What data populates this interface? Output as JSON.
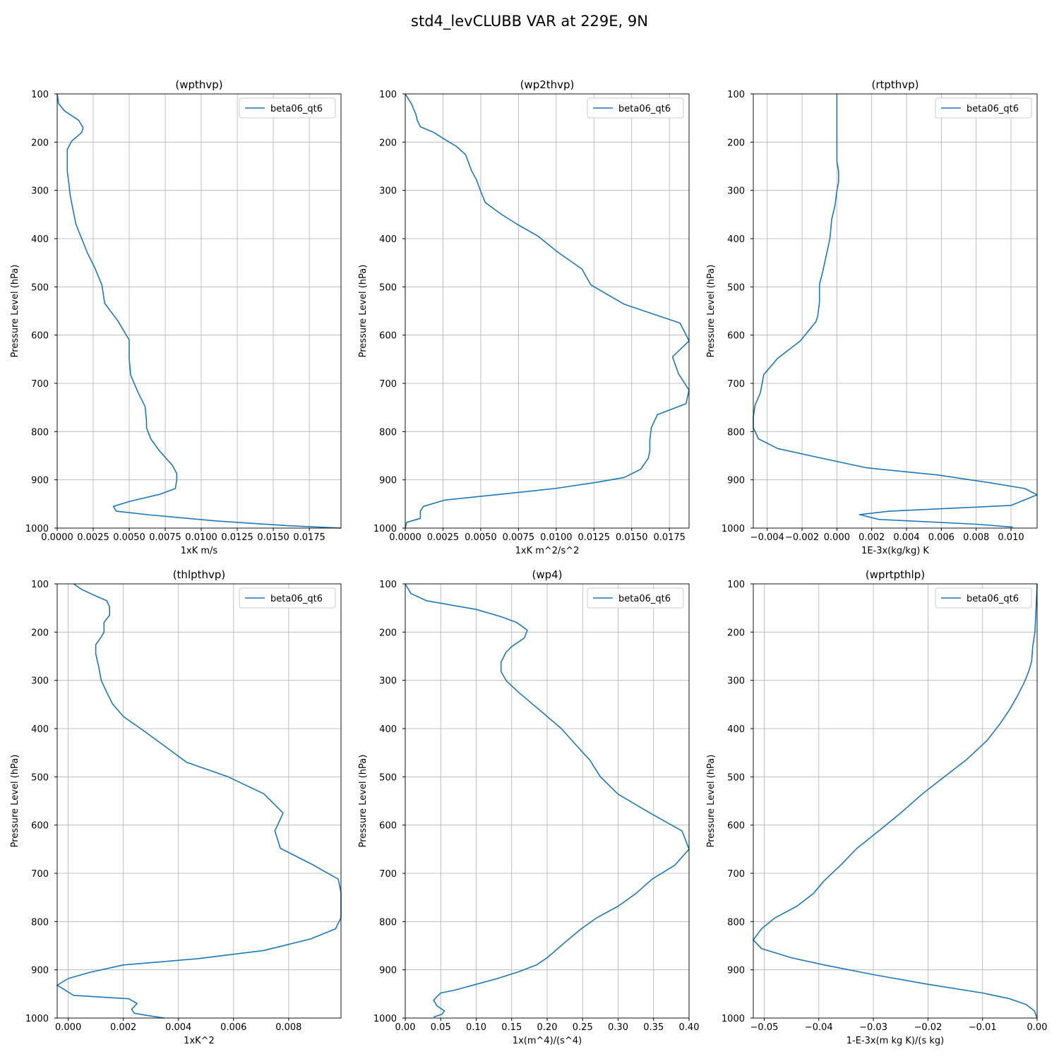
{
  "figure": {
    "title": "std4_levCLUBB VAR at 229E, 9N"
  },
  "colors": {
    "series": "#1f77b4",
    "grid": "#b0b0b0",
    "axes": "#000000"
  },
  "chart_data": [
    {
      "type": "line",
      "title": "(wpthvp)",
      "xlabel": "1xK m/s",
      "ylabel": "Pressure Level (hPa)",
      "xlim": [
        0,
        0.0197
      ],
      "ylim": [
        1000,
        100
      ],
      "grid": true,
      "legend": "top-right",
      "xticks": [
        0,
        0.0025,
        0.005,
        0.0075,
        0.01,
        0.0125,
        0.015,
        0.0175
      ],
      "xticklabels": [
        "0.0000",
        "0.0025",
        "0.0050",
        "0.0075",
        "0.0100",
        "0.0125",
        "0.0150",
        "0.0175"
      ],
      "yticks": [
        100,
        200,
        300,
        400,
        500,
        600,
        700,
        800,
        900,
        1000
      ],
      "yticklabels": [
        "100",
        "200",
        "300",
        "400",
        "500",
        "600",
        "700",
        "800",
        "900",
        "1000"
      ],
      "series": [
        {
          "name": "beta06_qt6",
          "x": [
            0.0,
            0.0001,
            0.0005,
            0.0015,
            0.0018,
            0.0017,
            0.001,
            0.0007,
            0.0007,
            0.0007,
            0.0008,
            0.0009,
            0.0011,
            0.0013,
            0.0017,
            0.0021,
            0.0026,
            0.0031,
            0.0033,
            0.0042,
            0.005,
            0.005,
            0.0051,
            0.0056,
            0.0061,
            0.0062,
            0.0062,
            0.0065,
            0.0071,
            0.008,
            0.0083,
            0.0083,
            0.0082,
            0.0071,
            0.005,
            0.0039,
            0.0041,
            0.0065,
            0.011,
            0.016,
            0.0197
          ],
          "y": [
            100,
            120,
            135,
            155,
            170,
            180,
            198,
            215,
            233,
            260,
            283,
            310,
            340,
            370,
            400,
            430,
            460,
            496,
            534,
            570,
            610,
            649,
            683,
            718,
            748,
            778,
            792,
            815,
            840,
            870,
            887,
            900,
            918,
            930,
            945,
            955,
            965,
            973,
            985,
            995,
            1000
          ]
        }
      ]
    },
    {
      "type": "line",
      "title": "(wp2thvp)",
      "xlabel": "1xK m^2/s^2",
      "ylabel": "Pressure Level (hPa)",
      "xlim": [
        0,
        0.0188
      ],
      "ylim": [
        1000,
        100
      ],
      "grid": true,
      "legend": "top-right",
      "xticks": [
        0,
        0.0025,
        0.005,
        0.0075,
        0.01,
        0.0125,
        0.015,
        0.0175
      ],
      "xticklabels": [
        "0.0000",
        "0.0025",
        "0.0050",
        "0.0075",
        "0.0100",
        "0.0125",
        "0.0150",
        "0.0175"
      ],
      "yticks": [
        100,
        200,
        300,
        400,
        500,
        600,
        700,
        800,
        900,
        1000
      ],
      "yticklabels": [
        "100",
        "200",
        "300",
        "400",
        "500",
        "600",
        "700",
        "800",
        "900",
        "1000"
      ],
      "series": [
        {
          "name": "beta06_qt6",
          "x": [
            0.0,
            0.0004,
            0.0007,
            0.0008,
            0.001,
            0.0019,
            0.0025,
            0.0034,
            0.004,
            0.0042,
            0.0044,
            0.0047,
            0.005,
            0.0053,
            0.0063,
            0.0074,
            0.0088,
            0.0101,
            0.0117,
            0.0123,
            0.0145,
            0.0182,
            0.0188,
            0.0177,
            0.0181,
            0.0188,
            0.0186,
            0.0167,
            0.0163,
            0.0162,
            0.0162,
            0.0161,
            0.0156,
            0.0145,
            0.0127,
            0.0099,
            0.0026,
            0.0012,
            0.001,
            0.001,
            0.0001,
            0.0
          ],
          "y": [
            100,
            120,
            142,
            155,
            168,
            180,
            192,
            209,
            226,
            243,
            260,
            277,
            302,
            325,
            348,
            370,
            395,
            428,
            463,
            496,
            536,
            575,
            612,
            645,
            680,
            714,
            742,
            765,
            792,
            818,
            840,
            855,
            878,
            895,
            905,
            918,
            942,
            955,
            965,
            980,
            988,
            1000
          ]
        }
      ]
    },
    {
      "type": "line",
      "title": "(rtpthvp)",
      "xlabel": "1E-3x(kg/kg) K",
      "ylabel": "Pressure Level (hPa)",
      "xlim": [
        -0.0048,
        0.0115
      ],
      "ylim": [
        1000,
        100
      ],
      "grid": true,
      "legend": "top-right",
      "xticks": [
        -0.004,
        -0.002,
        0.0,
        0.002,
        0.004,
        0.006,
        0.008,
        0.01
      ],
      "xticklabels": [
        "−0.004",
        "−0.002",
        "0.000",
        "0.002",
        "0.004",
        "0.006",
        "0.008",
        "0.010"
      ],
      "yticks": [
        100,
        200,
        300,
        400,
        500,
        600,
        700,
        800,
        900,
        1000
      ],
      "yticklabels": [
        "100",
        "200",
        "300",
        "400",
        "500",
        "600",
        "700",
        "800",
        "900",
        "1000"
      ],
      "series": [
        {
          "name": "beta06_qt6",
          "x": [
            0.0,
            0.0,
            0.0,
            0.0,
            0.0001,
            0.0001,
            0.0,
            -0.0001,
            -0.0003,
            -0.0004,
            -0.0008,
            -0.001,
            -0.001,
            -0.0011,
            -0.0012,
            -0.0021,
            -0.0034,
            -0.0042,
            -0.0044,
            -0.0047,
            -0.0048,
            -0.0048,
            -0.0045,
            -0.0034,
            -0.0009,
            0.0017,
            0.0058,
            0.0088,
            0.0108,
            0.0115,
            0.01,
            0.003,
            0.0013,
            0.0024,
            0.008,
            0.0101
          ],
          "y": [
            100,
            150,
            200,
            240,
            260,
            283,
            300,
            330,
            360,
            400,
            466,
            495,
            532,
            560,
            572,
            612,
            648,
            682,
            720,
            745,
            770,
            792,
            815,
            835,
            855,
            875,
            890,
            906,
            918,
            931,
            953,
            965,
            972,
            982,
            992,
            998
          ]
        }
      ]
    },
    {
      "type": "line",
      "title": "(thlpthvp)",
      "xlabel": "1xK^2",
      "ylabel": "Pressure Level (hPa)",
      "xlim": [
        -0.0004,
        0.0099
      ],
      "ylim": [
        1000,
        100
      ],
      "grid": true,
      "legend": "top-right",
      "xticks": [
        0.0,
        0.002,
        0.004,
        0.006,
        0.008
      ],
      "xticklabels": [
        "0.000",
        "0.002",
        "0.004",
        "0.006",
        "0.008"
      ],
      "yticks": [
        100,
        200,
        300,
        400,
        500,
        600,
        700,
        800,
        900,
        1000
      ],
      "yticklabels": [
        "100",
        "200",
        "300",
        "400",
        "500",
        "600",
        "700",
        "800",
        "900",
        "1000"
      ],
      "series": [
        {
          "name": "beta06_qt6",
          "x": [
            0.0002,
            0.0005,
            0.001,
            0.0014,
            0.0015,
            0.0015,
            0.0013,
            0.0013,
            0.0012,
            0.001,
            0.001,
            0.0011,
            0.0012,
            0.0014,
            0.0016,
            0.002,
            0.0027,
            0.0034,
            0.0043,
            0.0058,
            0.0071,
            0.0078,
            0.0075,
            0.0077,
            0.0089,
            0.0098,
            0.0099,
            0.0099,
            0.0099,
            0.0097,
            0.0088,
            0.0071,
            0.0047,
            0.002,
            0.0008,
            0.0,
            -0.0004,
            0.0002,
            0.0022,
            0.0025,
            0.0023,
            0.0024,
            0.0029,
            0.0035
          ],
          "y": [
            100,
            112,
            125,
            135,
            148,
            165,
            180,
            200,
            210,
            226,
            245,
            270,
            300,
            325,
            348,
            375,
            403,
            432,
            470,
            500,
            535,
            575,
            612,
            648,
            683,
            712,
            740,
            768,
            792,
            815,
            836,
            860,
            877,
            890,
            905,
            918,
            932,
            953,
            960,
            970,
            982,
            990,
            995,
            1000
          ]
        }
      ]
    },
    {
      "type": "line",
      "title": "(wp4)",
      "xlabel": "1x(m^4)/(s^4)",
      "ylabel": "Pressure Level (hPa)",
      "xlim": [
        0,
        0.4
      ],
      "ylim": [
        1000,
        100
      ],
      "grid": true,
      "legend": "top-right",
      "xticks": [
        0,
        0.05,
        0.1,
        0.15,
        0.2,
        0.25,
        0.3,
        0.35,
        0.4
      ],
      "xticklabels": [
        "0.00",
        "0.05",
        "0.10",
        "0.15",
        "0.20",
        "0.25",
        "0.30",
        "0.35",
        "0.40"
      ],
      "yticks": [
        100,
        200,
        300,
        400,
        500,
        600,
        700,
        800,
        900,
        1000
      ],
      "yticklabels": [
        "100",
        "200",
        "300",
        "400",
        "500",
        "600",
        "700",
        "800",
        "900",
        "1000"
      ],
      "series": [
        {
          "name": "beta06_qt6",
          "x": [
            0.0,
            0.008,
            0.03,
            0.1,
            0.135,
            0.157,
            0.172,
            0.168,
            0.15,
            0.142,
            0.135,
            0.135,
            0.143,
            0.16,
            0.18,
            0.2,
            0.22,
            0.24,
            0.26,
            0.275,
            0.3,
            0.345,
            0.39,
            0.4,
            0.38,
            0.348,
            0.325,
            0.3,
            0.27,
            0.248,
            0.226,
            0.2,
            0.185,
            0.16,
            0.13,
            0.1,
            0.07,
            0.05,
            0.045,
            0.04,
            0.045,
            0.055,
            0.052,
            0.04
          ],
          "y": [
            100,
            120,
            135,
            153,
            168,
            180,
            196,
            212,
            230,
            242,
            262,
            282,
            302,
            325,
            350,
            375,
            400,
            433,
            465,
            500,
            536,
            575,
            612,
            650,
            683,
            712,
            742,
            768,
            792,
            815,
            842,
            875,
            890,
            904,
            918,
            930,
            942,
            948,
            955,
            963,
            975,
            985,
            992,
            998
          ]
        }
      ]
    },
    {
      "type": "line",
      "title": "(wprtpthlp)",
      "xlabel": "1-E-3x(m kg K)/(s kg)",
      "ylabel": "Pressure Level (hPa)",
      "xlim": [
        -0.052,
        0.0
      ],
      "ylim": [
        1000,
        100
      ],
      "grid": true,
      "legend": "top-right",
      "xticks": [
        -0.05,
        -0.04,
        -0.03,
        -0.02,
        -0.01,
        0.0
      ],
      "xticklabels": [
        "−0.05",
        "−0.04",
        "−0.03",
        "−0.02",
        "−0.01",
        "0.00"
      ],
      "yticks": [
        100,
        200,
        300,
        400,
        500,
        600,
        700,
        800,
        900,
        1000
      ],
      "yticklabels": [
        "100",
        "200",
        "300",
        "400",
        "500",
        "600",
        "700",
        "800",
        "900",
        "1000"
      ],
      "series": [
        {
          "name": "beta06_qt6",
          "x": [
            0.0,
            -0.0002,
            -0.0004,
            -0.0008,
            -0.001,
            -0.0015,
            -0.0023,
            -0.0035,
            -0.005,
            -0.0068,
            -0.0092,
            -0.013,
            -0.017,
            -0.021,
            -0.025,
            -0.029,
            -0.033,
            -0.036,
            -0.039,
            -0.041,
            -0.044,
            -0.048,
            -0.0505,
            -0.052,
            -0.0505,
            -0.045,
            -0.039,
            -0.03,
            -0.02,
            -0.01,
            -0.005,
            -0.002,
            -0.0005,
            0.0
          ],
          "y": [
            100,
            150,
            200,
            230,
            260,
            280,
            303,
            330,
            360,
            390,
            425,
            465,
            500,
            535,
            575,
            612,
            648,
            683,
            715,
            742,
            768,
            792,
            815,
            838,
            856,
            875,
            890,
            910,
            930,
            948,
            960,
            972,
            985,
            1000
          ]
        }
      ]
    }
  ]
}
